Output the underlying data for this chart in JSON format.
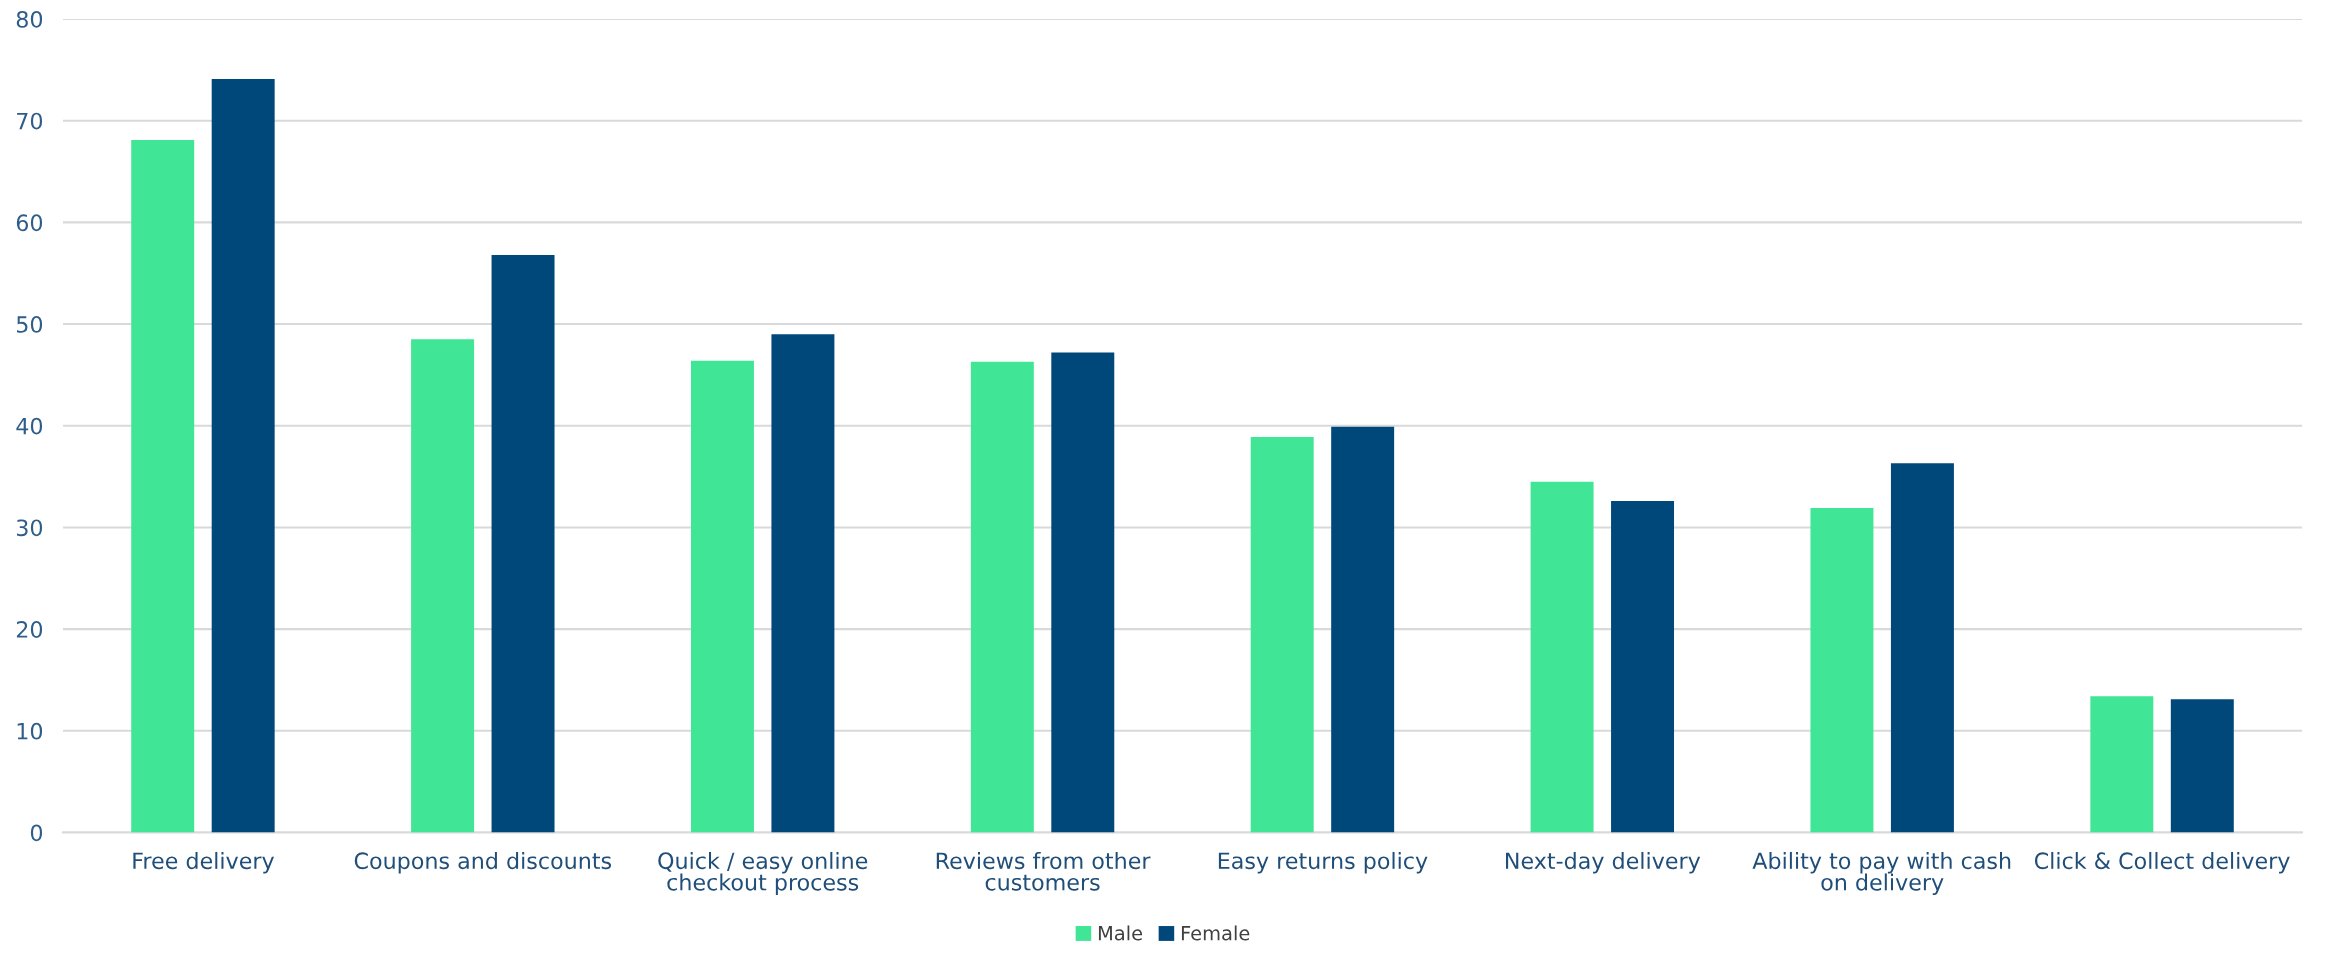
{
  "chart_data": {
    "type": "bar",
    "categories": [
      "Free delivery",
      "Coupons and discounts",
      "Quick / easy online\ncheckout process",
      "Reviews from other\ncustomers",
      "Easy returns policy",
      "Next-day delivery",
      "Ability to pay with cash\non delivery",
      "Click & Collect delivery"
    ],
    "series": [
      {
        "name": "Male",
        "color": "#40e595",
        "values": [
          68.1,
          48.5,
          46.4,
          46.3,
          38.9,
          34.5,
          31.9,
          13.4
        ]
      },
      {
        "name": "Female",
        "color": "#00487a",
        "values": [
          74.1,
          56.8,
          49.0,
          47.2,
          39.9,
          32.6,
          36.3,
          13.1
        ]
      }
    ],
    "ylim": [
      0,
      80
    ],
    "yticks": [
      0,
      10,
      20,
      30,
      40,
      50,
      60,
      70,
      80
    ],
    "grid": "y",
    "legend": "bottom"
  }
}
